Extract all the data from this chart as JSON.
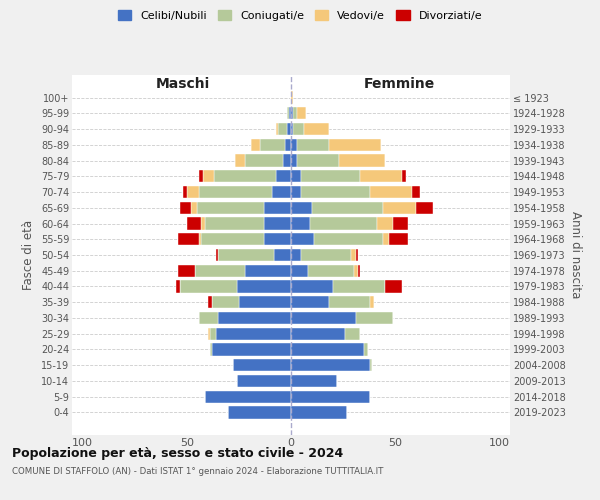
{
  "age_groups": [
    "100+",
    "95-99",
    "90-94",
    "85-89",
    "80-84",
    "75-79",
    "70-74",
    "65-69",
    "60-64",
    "55-59",
    "50-54",
    "45-49",
    "40-44",
    "35-39",
    "30-34",
    "25-29",
    "20-24",
    "15-19",
    "10-14",
    "5-9",
    "0-4"
  ],
  "birth_years": [
    "≤ 1923",
    "1924-1928",
    "1929-1933",
    "1934-1938",
    "1939-1943",
    "1944-1948",
    "1949-1953",
    "1954-1958",
    "1959-1963",
    "1964-1968",
    "1969-1973",
    "1974-1978",
    "1979-1983",
    "1984-1988",
    "1989-1993",
    "1994-1998",
    "1999-2003",
    "2004-2008",
    "2009-2013",
    "2014-2018",
    "2019-2023"
  ],
  "colors": {
    "celibe": "#4472c4",
    "coniugato": "#b5c99a",
    "vedovo": "#f5c87a",
    "divorziato": "#cc0000"
  },
  "males": {
    "celibe": [
      0,
      1,
      2,
      3,
      4,
      7,
      9,
      13,
      13,
      13,
      8,
      22,
      26,
      25,
      35,
      36,
      38,
      28,
      26,
      41,
      30
    ],
    "coniugato": [
      0,
      1,
      4,
      12,
      18,
      30,
      35,
      32,
      28,
      30,
      27,
      24,
      27,
      13,
      9,
      3,
      1,
      0,
      0,
      0,
      0
    ],
    "vedovo": [
      0,
      0,
      1,
      4,
      5,
      5,
      6,
      3,
      2,
      1,
      0,
      0,
      0,
      0,
      0,
      1,
      0,
      0,
      0,
      0,
      0
    ],
    "divorziato": [
      0,
      0,
      0,
      0,
      0,
      2,
      2,
      5,
      7,
      10,
      1,
      8,
      2,
      2,
      0,
      0,
      0,
      0,
      0,
      0,
      0
    ]
  },
  "females": {
    "nubile": [
      0,
      1,
      1,
      3,
      3,
      5,
      5,
      10,
      9,
      11,
      5,
      8,
      20,
      18,
      31,
      26,
      35,
      38,
      22,
      38,
      27
    ],
    "coniugata": [
      0,
      2,
      5,
      15,
      20,
      28,
      33,
      34,
      32,
      33,
      24,
      22,
      25,
      20,
      18,
      7,
      2,
      1,
      0,
      0,
      0
    ],
    "vedova": [
      1,
      4,
      12,
      25,
      22,
      20,
      20,
      16,
      8,
      3,
      2,
      2,
      0,
      2,
      0,
      0,
      0,
      0,
      0,
      0,
      0
    ],
    "divorziata": [
      0,
      0,
      0,
      0,
      0,
      2,
      4,
      8,
      7,
      9,
      1,
      1,
      8,
      0,
      0,
      0,
      0,
      0,
      0,
      0,
      0
    ]
  },
  "title": "Popolazione per età, sesso e stato civile - 2024",
  "subtitle": "COMUNE DI STAFFOLO (AN) - Dati ISTAT 1° gennaio 2024 - Elaborazione TUTTITALIA.IT",
  "ylabel_left": "Fasce di età",
  "ylabel_right": "Anni di nascita",
  "xlim": 105,
  "legend_labels": [
    "Celibi/Nubili",
    "Coniugati/e",
    "Vedovi/e",
    "Divorziati/e"
  ],
  "male_label": "Maschi",
  "female_label": "Femmine",
  "bg_color": "#f0f0f0",
  "plot_bg_color": "#ffffff"
}
